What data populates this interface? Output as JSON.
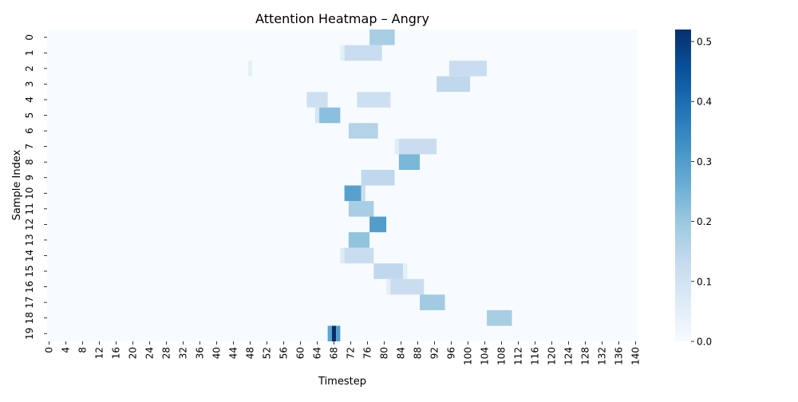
{
  "chart_data": {
    "type": "heatmap",
    "title": "Attention Heatmap – Angry",
    "xlabel": "Timestep",
    "ylabel": "Sample Index",
    "x_ticks": [
      "0",
      "4",
      "8",
      "12",
      "16",
      "20",
      "24",
      "28",
      "32",
      "36",
      "40",
      "44",
      "48",
      "52",
      "56",
      "60",
      "64",
      "68",
      "72",
      "76",
      "80",
      "84",
      "88",
      "92",
      "96",
      "100",
      "104",
      "108",
      "112",
      "116",
      "120",
      "124",
      "128",
      "132",
      "136",
      "140"
    ],
    "y_ticks": [
      "0",
      "1",
      "2",
      "3",
      "4",
      "5",
      "6",
      "7",
      "8",
      "9",
      "10",
      "11",
      "12",
      "13",
      "14",
      "15",
      "16",
      "17",
      "18",
      "19"
    ],
    "n_timesteps": 141,
    "n_samples": 20,
    "vmin": 0,
    "vmax": 0.52,
    "colormap": "Blues",
    "colorbar_ticks": [
      "0.0",
      "0.1",
      "0.2",
      "0.3",
      "0.4",
      "0.5"
    ],
    "colorbar_tick_values": [
      0.0,
      0.1,
      0.2,
      0.3,
      0.4,
      0.5
    ],
    "grid": false,
    "cells": [
      {
        "row": 0,
        "start": 77,
        "end": 82,
        "value": 0.18
      },
      {
        "row": 1,
        "start": 70,
        "end": 70,
        "value": 0.05
      },
      {
        "row": 1,
        "start": 71,
        "end": 79,
        "value": 0.12
      },
      {
        "row": 2,
        "start": 48,
        "end": 48,
        "value": 0.05
      },
      {
        "row": 2,
        "start": 96,
        "end": 104,
        "value": 0.12
      },
      {
        "row": 3,
        "start": 93,
        "end": 100,
        "value": 0.14
      },
      {
        "row": 4,
        "start": 62,
        "end": 66,
        "value": 0.11
      },
      {
        "row": 4,
        "start": 74,
        "end": 81,
        "value": 0.11
      },
      {
        "row": 5,
        "start": 64,
        "end": 64,
        "value": 0.09
      },
      {
        "row": 5,
        "start": 65,
        "end": 69,
        "value": 0.22
      },
      {
        "row": 6,
        "start": 72,
        "end": 78,
        "value": 0.16
      },
      {
        "row": 7,
        "start": 83,
        "end": 83,
        "value": 0.06
      },
      {
        "row": 7,
        "start": 84,
        "end": 92,
        "value": 0.12
      },
      {
        "row": 8,
        "start": 84,
        "end": 88,
        "value": 0.24
      },
      {
        "row": 9,
        "start": 75,
        "end": 82,
        "value": 0.14
      },
      {
        "row": 10,
        "start": 71,
        "end": 74,
        "value": 0.29
      },
      {
        "row": 10,
        "start": 75,
        "end": 75,
        "value": 0.12
      },
      {
        "row": 11,
        "start": 72,
        "end": 77,
        "value": 0.18
      },
      {
        "row": 12,
        "start": 77,
        "end": 80,
        "value": 0.3
      },
      {
        "row": 13,
        "start": 72,
        "end": 76,
        "value": 0.21
      },
      {
        "row": 14,
        "start": 70,
        "end": 70,
        "value": 0.07
      },
      {
        "row": 14,
        "start": 71,
        "end": 77,
        "value": 0.12
      },
      {
        "row": 15,
        "start": 78,
        "end": 84,
        "value": 0.14
      },
      {
        "row": 15,
        "start": 85,
        "end": 85,
        "value": 0.05
      },
      {
        "row": 16,
        "start": 81,
        "end": 81,
        "value": 0.05
      },
      {
        "row": 16,
        "start": 82,
        "end": 89,
        "value": 0.12
      },
      {
        "row": 17,
        "start": 89,
        "end": 94,
        "value": 0.19
      },
      {
        "row": 18,
        "start": 105,
        "end": 110,
        "value": 0.18
      },
      {
        "row": 19,
        "start": 67,
        "end": 67,
        "value": 0.28
      },
      {
        "row": 19,
        "start": 68,
        "end": 68,
        "value": 0.52
      },
      {
        "row": 19,
        "start": 69,
        "end": 69,
        "value": 0.3
      }
    ]
  }
}
